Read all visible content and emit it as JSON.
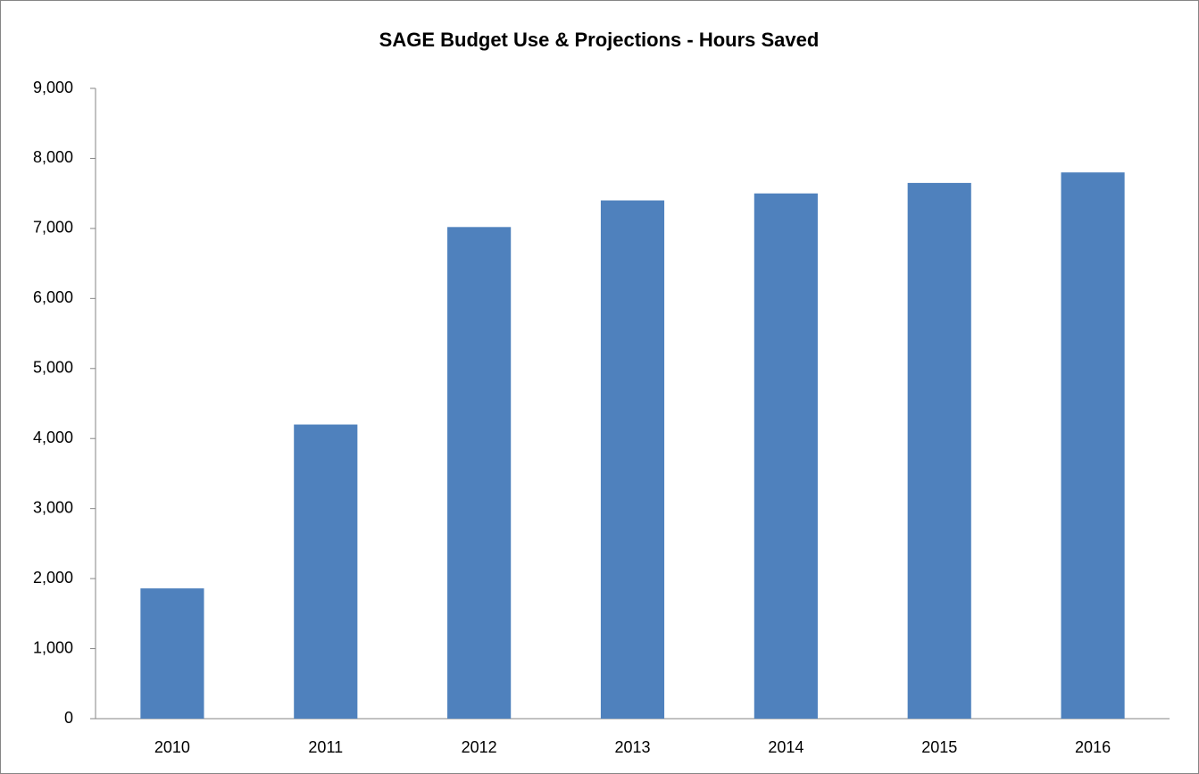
{
  "chart_data": {
    "type": "bar",
    "title": "SAGE Budget Use  & Projections - Hours Saved",
    "categories": [
      "2010",
      "2011",
      "2012",
      "2013",
      "2014",
      "2015",
      "2016"
    ],
    "values": [
      1860,
      4200,
      7020,
      7400,
      7500,
      7650,
      7800
    ],
    "color": "#4f81bd",
    "ylim": [
      0,
      9000
    ],
    "yticks": [
      0,
      {
        "value": 1000,
        "label": "1,000"
      },
      {
        "value": 2000,
        "label": "2,000"
      },
      {
        "value": 3000,
        "label": "3,000"
      },
      {
        "value": 4000,
        "label": "4,000"
      },
      {
        "value": 5000,
        "label": "5,000"
      },
      {
        "value": 6000,
        "label": "6,000"
      },
      {
        "value": 7000,
        "label": "7,000"
      },
      {
        "value": 8000,
        "label": "8,000"
      },
      {
        "value": 9000,
        "label": "9,000"
      }
    ],
    "grid": false
  }
}
